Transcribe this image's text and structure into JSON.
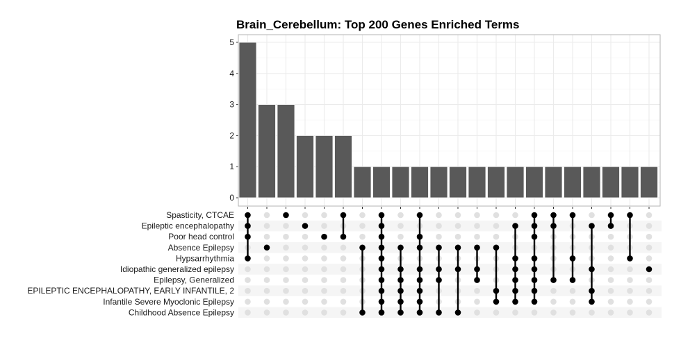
{
  "chart_data": {
    "type": "bar",
    "subtype": "upset",
    "title": "Brain_Cerebellum: Top 200 Genes Enriched Terms",
    "xlabel": "",
    "ylabel": "",
    "ylim": [
      0,
      5
    ],
    "yticks": [
      0,
      1,
      2,
      3,
      4,
      5
    ],
    "grid": true,
    "colors": {
      "bar": "#595959",
      "dot_on": "#000000",
      "dot_off": "#e0e0e0",
      "stripe": "#f5f5f5",
      "grid": "#ebebeb",
      "panel_border": "#b3b3b3"
    },
    "sets": [
      "Spasticity, CTCAE",
      "Epileptic encephalopathy",
      "Poor head control",
      "Absence Epilepsy",
      "Hypsarrhythmia",
      "Idiopathic generalized epilepsy",
      "Epilepsy, Generalized",
      "EPILEPTIC ENCEPHALOPATHY, EARLY INFANTILE, 2",
      "Infantile Severe Myoclonic Epilepsy",
      "Childhood Absence Epilepsy"
    ],
    "intersections": [
      {
        "members": [
          0,
          1,
          2,
          4
        ],
        "value": 5
      },
      {
        "members": [
          3
        ],
        "value": 3
      },
      {
        "members": [
          0
        ],
        "value": 3
      },
      {
        "members": [
          1
        ],
        "value": 2
      },
      {
        "members": [
          2
        ],
        "value": 2
      },
      {
        "members": [
          0,
          2
        ],
        "value": 2
      },
      {
        "members": [
          3,
          9
        ],
        "value": 1
      },
      {
        "members": [
          0,
          1,
          2,
          3,
          4,
          5,
          6,
          7,
          8,
          9
        ],
        "value": 1
      },
      {
        "members": [
          3,
          5,
          6,
          7,
          8,
          9
        ],
        "value": 1
      },
      {
        "members": [
          0,
          2,
          3,
          5,
          6,
          7,
          8,
          9
        ],
        "value": 1
      },
      {
        "members": [
          3,
          5,
          6,
          9
        ],
        "value": 1
      },
      {
        "members": [
          3,
          5,
          9
        ],
        "value": 1
      },
      {
        "members": [
          3,
          5,
          6
        ],
        "value": 1
      },
      {
        "members": [
          3,
          7,
          8
        ],
        "value": 1
      },
      {
        "members": [
          1,
          4,
          5,
          6,
          7,
          8
        ],
        "value": 1
      },
      {
        "members": [
          0,
          1,
          2,
          4,
          5,
          6,
          7,
          8
        ],
        "value": 1
      },
      {
        "members": [
          0,
          1,
          6
        ],
        "value": 1
      },
      {
        "members": [
          0,
          4,
          6
        ],
        "value": 1
      },
      {
        "members": [
          1,
          5,
          7,
          8
        ],
        "value": 1
      },
      {
        "members": [
          0,
          1
        ],
        "value": 1
      },
      {
        "members": [
          0,
          4
        ],
        "value": 1
      },
      {
        "members": [
          5
        ],
        "value": 1
      }
    ]
  }
}
